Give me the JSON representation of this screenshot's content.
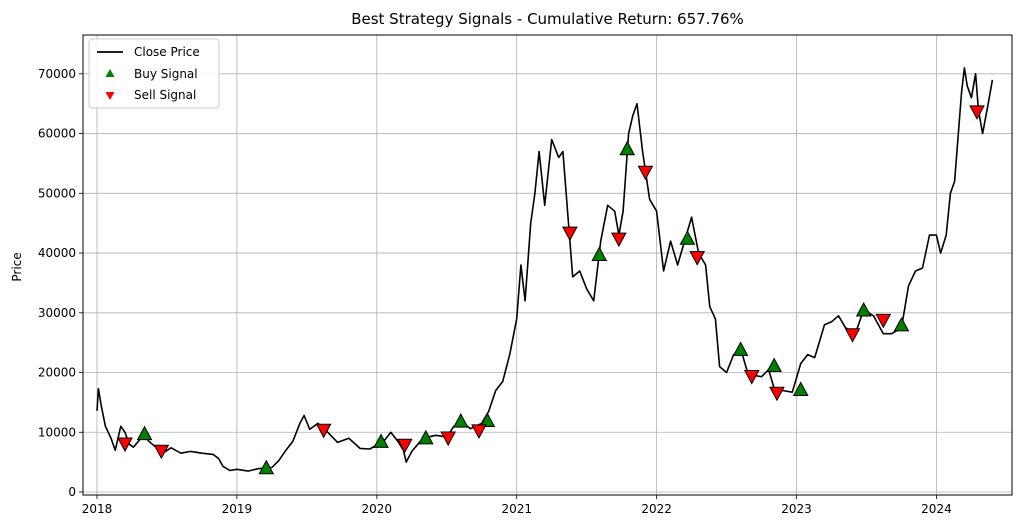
{
  "chart_data": {
    "type": "line",
    "title": "Best Strategy Signals - Cumulative Return: 657.76%",
    "xlabel": "",
    "ylabel": "Price",
    "xlim": [
      2017.9,
      2024.54
    ],
    "ylim": [
      -500,
      76500
    ],
    "x_ticks": [
      2018,
      2019,
      2020,
      2021,
      2022,
      2023,
      2024
    ],
    "x_tick_labels": [
      "2018",
      "2019",
      "2020",
      "2021",
      "2022",
      "2023",
      "2024"
    ],
    "y_ticks": [
      0,
      10000,
      20000,
      30000,
      40000,
      50000,
      60000,
      70000
    ],
    "y_tick_labels": [
      "0",
      "10000",
      "20000",
      "30000",
      "40000",
      "50000",
      "60000",
      "70000"
    ],
    "grid": true,
    "legend": {
      "placement": "top-left",
      "entries": [
        "Close Price",
        "Buy Signal",
        "Sell Signal"
      ]
    },
    "colors": {
      "close": "#000000",
      "buy": "#008000",
      "sell": "#ff0000"
    },
    "series": [
      {
        "name": "Close Price",
        "points": [
          [
            2018.0,
            13600
          ],
          [
            2018.01,
            17300
          ],
          [
            2018.03,
            14500
          ],
          [
            2018.06,
            11000
          ],
          [
            2018.1,
            9000
          ],
          [
            2018.13,
            7000
          ],
          [
            2018.17,
            11000
          ],
          [
            2018.2,
            10000
          ],
          [
            2018.23,
            8000
          ],
          [
            2018.26,
            7500
          ],
          [
            2018.3,
            8600
          ],
          [
            2018.33,
            9700
          ],
          [
            2018.37,
            8500
          ],
          [
            2018.42,
            7500
          ],
          [
            2018.47,
            6500
          ],
          [
            2018.53,
            7400
          ],
          [
            2018.6,
            6500
          ],
          [
            2018.67,
            6800
          ],
          [
            2018.75,
            6500
          ],
          [
            2018.83,
            6300
          ],
          [
            2018.87,
            5600
          ],
          [
            2018.9,
            4300
          ],
          [
            2018.95,
            3600
          ],
          [
            2019.0,
            3800
          ],
          [
            2019.08,
            3500
          ],
          [
            2019.15,
            3900
          ],
          [
            2019.25,
            4100
          ],
          [
            2019.3,
            5300
          ],
          [
            2019.35,
            7000
          ],
          [
            2019.4,
            8500
          ],
          [
            2019.45,
            11500
          ],
          [
            2019.48,
            12800
          ],
          [
            2019.52,
            10500
          ],
          [
            2019.58,
            11500
          ],
          [
            2019.65,
            10000
          ],
          [
            2019.72,
            8300
          ],
          [
            2019.8,
            9000
          ],
          [
            2019.88,
            7300
          ],
          [
            2019.95,
            7200
          ],
          [
            2020.05,
            8500
          ],
          [
            2020.1,
            10000
          ],
          [
            2020.15,
            8500
          ],
          [
            2020.19,
            7000
          ],
          [
            2020.21,
            5000
          ],
          [
            2020.25,
            6800
          ],
          [
            2020.33,
            9000
          ],
          [
            2020.42,
            9500
          ],
          [
            2020.5,
            9200
          ],
          [
            2020.55,
            11000
          ],
          [
            2020.6,
            11800
          ],
          [
            2020.67,
            10600
          ],
          [
            2020.75,
            11500
          ],
          [
            2020.8,
            13500
          ],
          [
            2020.85,
            17000
          ],
          [
            2020.9,
            18500
          ],
          [
            2020.95,
            23000
          ],
          [
            2021.0,
            29000
          ],
          [
            2021.03,
            38000
          ],
          [
            2021.06,
            32000
          ],
          [
            2021.1,
            45000
          ],
          [
            2021.13,
            50000
          ],
          [
            2021.16,
            57000
          ],
          [
            2021.2,
            48000
          ],
          [
            2021.25,
            59000
          ],
          [
            2021.3,
            56000
          ],
          [
            2021.33,
            57000
          ],
          [
            2021.37,
            45000
          ],
          [
            2021.4,
            36000
          ],
          [
            2021.45,
            37000
          ],
          [
            2021.5,
            34000
          ],
          [
            2021.55,
            32000
          ],
          [
            2021.6,
            42000
          ],
          [
            2021.65,
            48000
          ],
          [
            2021.7,
            47000
          ],
          [
            2021.73,
            43000
          ],
          [
            2021.76,
            47000
          ],
          [
            2021.8,
            60000
          ],
          [
            2021.83,
            63000
          ],
          [
            2021.86,
            65000
          ],
          [
            2021.9,
            57000
          ],
          [
            2021.95,
            49000
          ],
          [
            2022.0,
            47000
          ],
          [
            2022.05,
            37000
          ],
          [
            2022.1,
            42000
          ],
          [
            2022.15,
            38000
          ],
          [
            2022.2,
            42000
          ],
          [
            2022.25,
            46000
          ],
          [
            2022.3,
            40000
          ],
          [
            2022.35,
            38000
          ],
          [
            2022.38,
            31000
          ],
          [
            2022.42,
            29000
          ],
          [
            2022.45,
            21000
          ],
          [
            2022.5,
            20000
          ],
          [
            2022.55,
            23000
          ],
          [
            2022.6,
            24000
          ],
          [
            2022.65,
            20000
          ],
          [
            2022.7,
            19500
          ],
          [
            2022.75,
            19300
          ],
          [
            2022.8,
            20500
          ],
          [
            2022.85,
            16500
          ],
          [
            2022.9,
            17000
          ],
          [
            2022.97,
            16700
          ],
          [
            2023.03,
            21500
          ],
          [
            2023.08,
            23000
          ],
          [
            2023.13,
            22500
          ],
          [
            2023.2,
            28000
          ],
          [
            2023.25,
            28500
          ],
          [
            2023.3,
            29500
          ],
          [
            2023.35,
            27500
          ],
          [
            2023.42,
            26500
          ],
          [
            2023.48,
            30500
          ],
          [
            2023.55,
            29500
          ],
          [
            2023.62,
            26500
          ],
          [
            2023.68,
            26500
          ],
          [
            2023.75,
            27500
          ],
          [
            2023.8,
            34500
          ],
          [
            2023.85,
            37000
          ],
          [
            2023.9,
            37500
          ],
          [
            2023.95,
            43000
          ],
          [
            2024.0,
            43000
          ],
          [
            2024.03,
            40000
          ],
          [
            2024.07,
            43000
          ],
          [
            2024.1,
            50000
          ],
          [
            2024.13,
            52000
          ],
          [
            2024.16,
            61000
          ],
          [
            2024.18,
            67000
          ],
          [
            2024.2,
            71000
          ],
          [
            2024.22,
            68000
          ],
          [
            2024.25,
            66000
          ],
          [
            2024.28,
            70000
          ],
          [
            2024.3,
            64000
          ],
          [
            2024.33,
            60000
          ],
          [
            2024.37,
            65000
          ],
          [
            2024.4,
            69000
          ]
        ]
      },
      {
        "name": "Buy Signal",
        "points": [
          [
            2018.34,
            9600
          ],
          [
            2019.21,
            3900
          ],
          [
            2020.03,
            8300
          ],
          [
            2020.35,
            8900
          ],
          [
            2020.6,
            11700
          ],
          [
            2020.79,
            11800
          ],
          [
            2021.59,
            39600
          ],
          [
            2021.79,
            57300
          ],
          [
            2022.22,
            42300
          ],
          [
            2022.6,
            23700
          ],
          [
            2022.84,
            21000
          ],
          [
            2023.03,
            17000
          ],
          [
            2023.48,
            30300
          ],
          [
            2023.75,
            27800
          ]
        ]
      },
      {
        "name": "Sell Signal",
        "points": [
          [
            2018.2,
            8200
          ],
          [
            2018.46,
            7000
          ],
          [
            2019.62,
            10500
          ],
          [
            2020.2,
            8000
          ],
          [
            2020.51,
            9200
          ],
          [
            2020.73,
            10400
          ],
          [
            2021.38,
            43500
          ],
          [
            2021.73,
            42500
          ],
          [
            2021.92,
            53700
          ],
          [
            2022.29,
            39400
          ],
          [
            2022.68,
            19500
          ],
          [
            2022.86,
            16700
          ],
          [
            2023.4,
            26500
          ],
          [
            2023.62,
            28900
          ],
          [
            2024.29,
            63800
          ]
        ]
      }
    ]
  }
}
